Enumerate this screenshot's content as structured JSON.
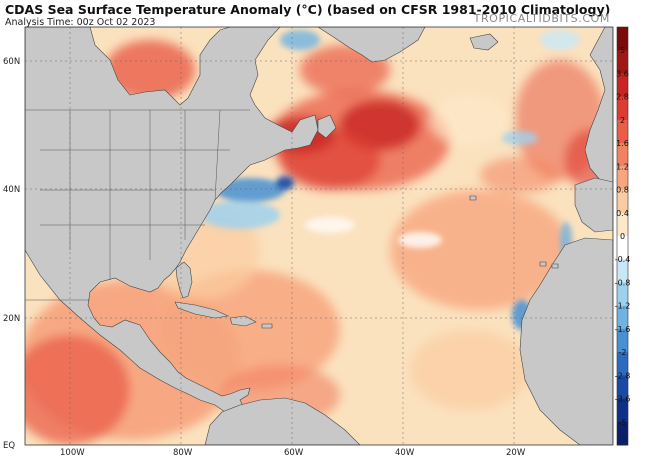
{
  "header": {
    "title": "CDAS Sea Surface Temperature Anomaly (°C) (based on CFSR 1981-2010 Climatology)",
    "subtitle": "Analysis Time: 00z Oct 02 2023",
    "site": "TROPICALTIDBITS.COM"
  },
  "map": {
    "lat_labels": [
      "60N",
      "40N",
      "20N",
      "EQ"
    ],
    "lon_labels": [
      "100W",
      "80W",
      "60W",
      "40W",
      "20W"
    ],
    "land_color": "#c8c8c8",
    "ocean_base_color": "#fbe2bf"
  },
  "colorbar": {
    "labels": [
      "5",
      "3.6",
      "2.8",
      "2",
      "1.6",
      "1.2",
      "0.8",
      "0.4",
      "0",
      "-0.4",
      "-0.8",
      "-1.2",
      "-1.6",
      "-2",
      "-2.8",
      "-3.6",
      "-5"
    ],
    "colors": [
      "#7a0b0b",
      "#a11616",
      "#c82424",
      "#dd3c33",
      "#ea5d47",
      "#f2815f",
      "#f7a67e",
      "#fbcc9f",
      "#fde8c9",
      "#ffffff",
      "#c9e8f7",
      "#9ed1ee",
      "#6fb3e3",
      "#4791d3",
      "#2c6cc0",
      "#1a4aa6",
      "#0f2f88",
      "#0a1e6a"
    ]
  }
}
